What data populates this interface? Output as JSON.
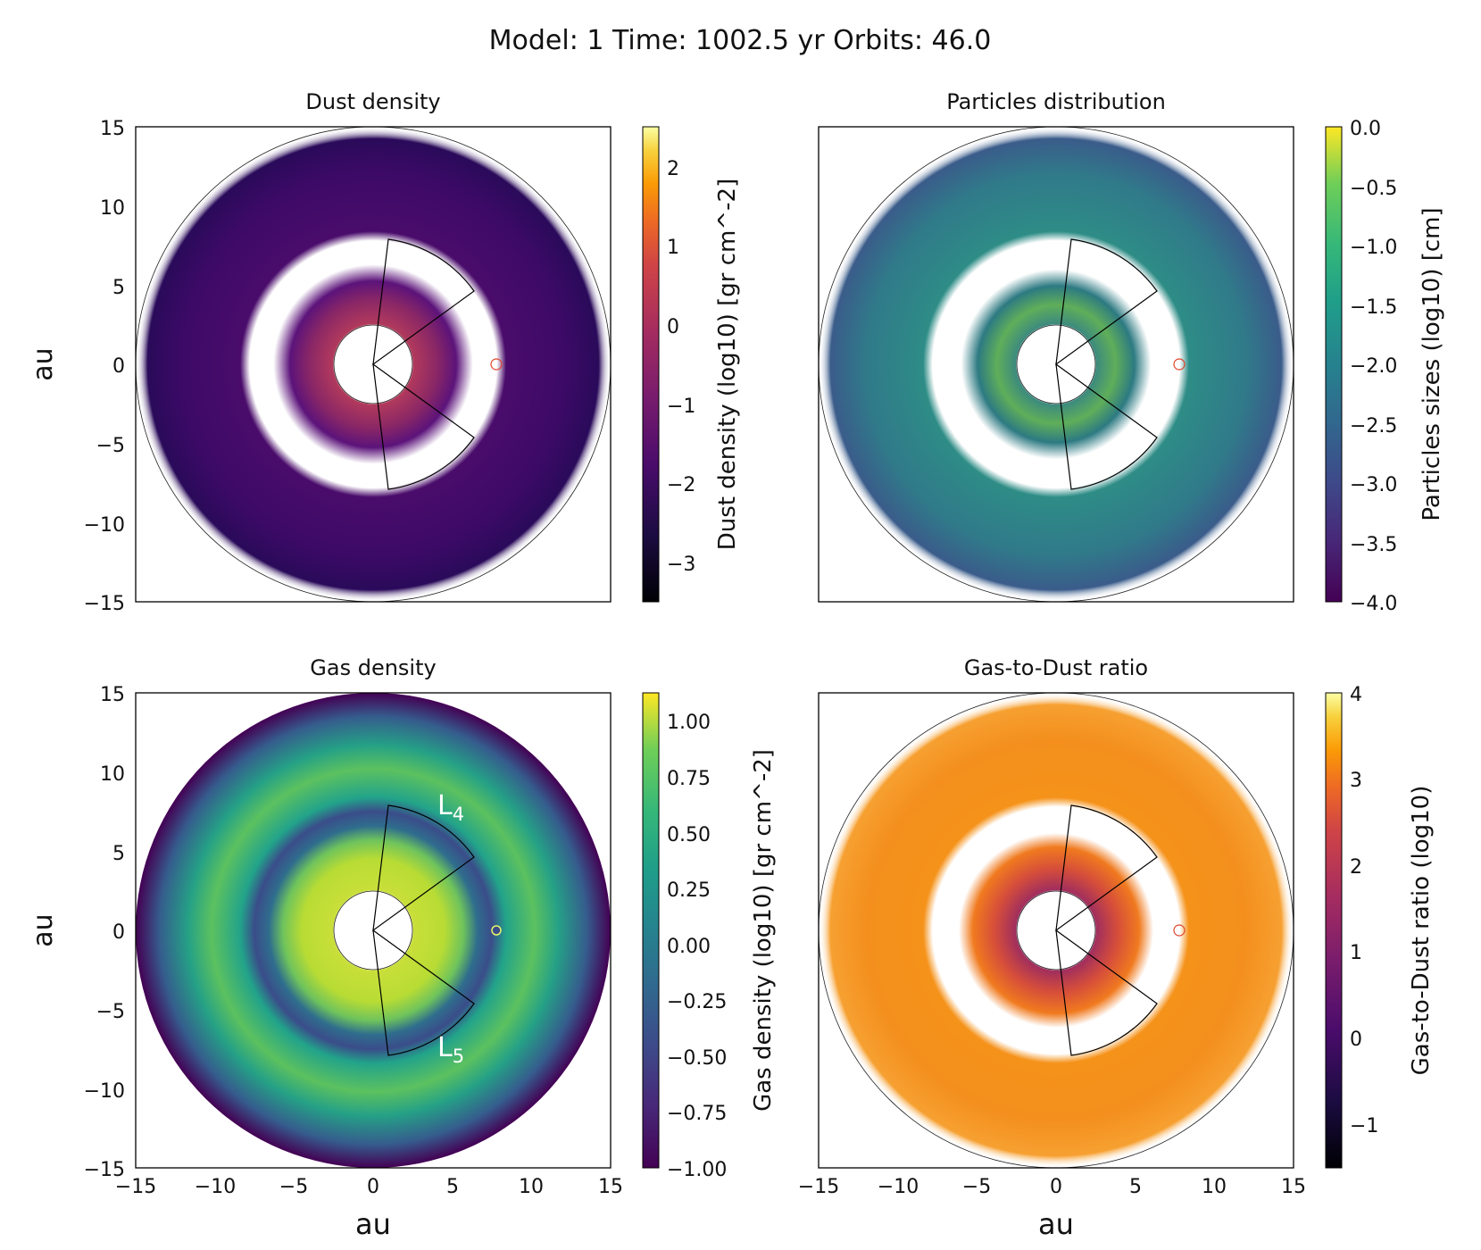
{
  "suptitle": "Model: 1  Time: 1002.5 yr  Orbits: 46.0",
  "chart_data": [
    {
      "type": "heatmap",
      "title": "Dust density",
      "xlabel": "",
      "ylabel": "au",
      "xlim": [
        -15,
        15
      ],
      "ylim": [
        -15,
        15
      ],
      "xticks": [
        -15,
        -10,
        -5,
        0,
        5,
        10,
        15
      ],
      "yticks": [
        -15,
        -10,
        -5,
        0,
        5,
        10,
        15
      ],
      "show_xticklabels": false,
      "show_yticklabels": true,
      "colormap": "inferno",
      "colorbar": {
        "label": "Dust density (log10) [gr cm^-2]",
        "range": [
          -3.5,
          2.5
        ],
        "ticks": [
          -3,
          -2,
          -1,
          0,
          1,
          2
        ],
        "tick_labels": [
          "−3",
          "−2",
          "−1",
          "0",
          "1",
          "2"
        ]
      },
      "structures": {
        "inner_hole_au": 2.5,
        "outer_edge_au": 15,
        "planet_radius_au": 7.8,
        "rings_au": [
          4.5,
          10.5
        ]
      },
      "annotations": []
    },
    {
      "type": "scatter",
      "title": "Particles distribution",
      "xlabel": "",
      "ylabel": "",
      "xlim": [
        -15,
        15
      ],
      "ylim": [
        -15,
        15
      ],
      "xticks": [
        -15,
        -10,
        -5,
        0,
        5,
        10,
        15
      ],
      "yticks": [
        -15,
        -10,
        -5,
        0,
        5,
        10,
        15
      ],
      "show_xticklabels": false,
      "show_yticklabels": false,
      "colormap": "viridis",
      "colorbar": {
        "label": "Particles sizes (log10) [cm]",
        "range": [
          -4.0,
          0.0
        ],
        "ticks": [
          -4.0,
          -3.5,
          -3.0,
          -2.5,
          -2.0,
          -1.5,
          -1.0,
          -0.5,
          0.0
        ],
        "tick_labels": [
          "−4.0",
          "−3.5",
          "−3.0",
          "−2.5",
          "−2.0",
          "−1.5",
          "−1.0",
          "−0.5",
          "0.0"
        ]
      },
      "structures": {
        "inner_hole_au": 2.5,
        "outer_edge_au": 15,
        "planet_radius_au": 7.8,
        "rings_au": [
          4.5,
          10.5
        ]
      },
      "annotations": []
    },
    {
      "type": "heatmap",
      "title": "Gas density",
      "xlabel": "au",
      "ylabel": "au",
      "xlim": [
        -15,
        15
      ],
      "ylim": [
        -15,
        15
      ],
      "xticks": [
        -15,
        -10,
        -5,
        0,
        5,
        10,
        15
      ],
      "yticks": [
        -15,
        -10,
        -5,
        0,
        5,
        10,
        15
      ],
      "show_xticklabels": true,
      "show_yticklabels": true,
      "colormap": "viridis",
      "colorbar": {
        "label": "Gas density (log10) [gr cm^-2]",
        "range": [
          -1.0,
          1.125
        ],
        "ticks": [
          -1.0,
          -0.75,
          -0.5,
          -0.25,
          0.0,
          0.25,
          0.5,
          0.75,
          1.0
        ],
        "tick_labels": [
          "−1.00",
          "−0.75",
          "−0.50",
          "−0.25",
          "0.00",
          "0.25",
          "0.50",
          "0.75",
          "1.00"
        ]
      },
      "structures": {
        "inner_hole_au": 2.5,
        "outer_edge_au": 15,
        "planet_radius_au": 7.8,
        "rings_au": [
          4.5,
          10.5
        ]
      },
      "annotations": [
        {
          "main": "L",
          "sub": "4",
          "x_au": 5.2,
          "y_au": 7.5
        },
        {
          "main": "L",
          "sub": "5",
          "x_au": 5.2,
          "y_au": -7.6
        }
      ]
    },
    {
      "type": "heatmap",
      "title": "Gas-to-Dust ratio",
      "xlabel": "au",
      "ylabel": "",
      "xlim": [
        -15,
        15
      ],
      "ylim": [
        -15,
        15
      ],
      "xticks": [
        -15,
        -10,
        -5,
        0,
        5,
        10,
        15
      ],
      "yticks": [
        -15,
        -10,
        -5,
        0,
        5,
        10,
        15
      ],
      "show_xticklabels": true,
      "show_yticklabels": false,
      "colormap": "inferno",
      "colorbar": {
        "label": "Gas-to-Dust ratio (log10)",
        "range": [
          -1.5,
          4.0
        ],
        "ticks": [
          -1,
          0,
          1,
          2,
          3,
          4
        ],
        "tick_labels": [
          "−1",
          "0",
          "1",
          "2",
          "3",
          "4"
        ]
      },
      "structures": {
        "inner_hole_au": 2.5,
        "outer_edge_au": 15,
        "planet_radius_au": 7.8,
        "rings_au": [
          4.5,
          10.5
        ]
      },
      "annotations": []
    }
  ],
  "axis_tick_labels": [
    "−15",
    "−10",
    "−5",
    "0",
    "5",
    "10",
    "15"
  ]
}
